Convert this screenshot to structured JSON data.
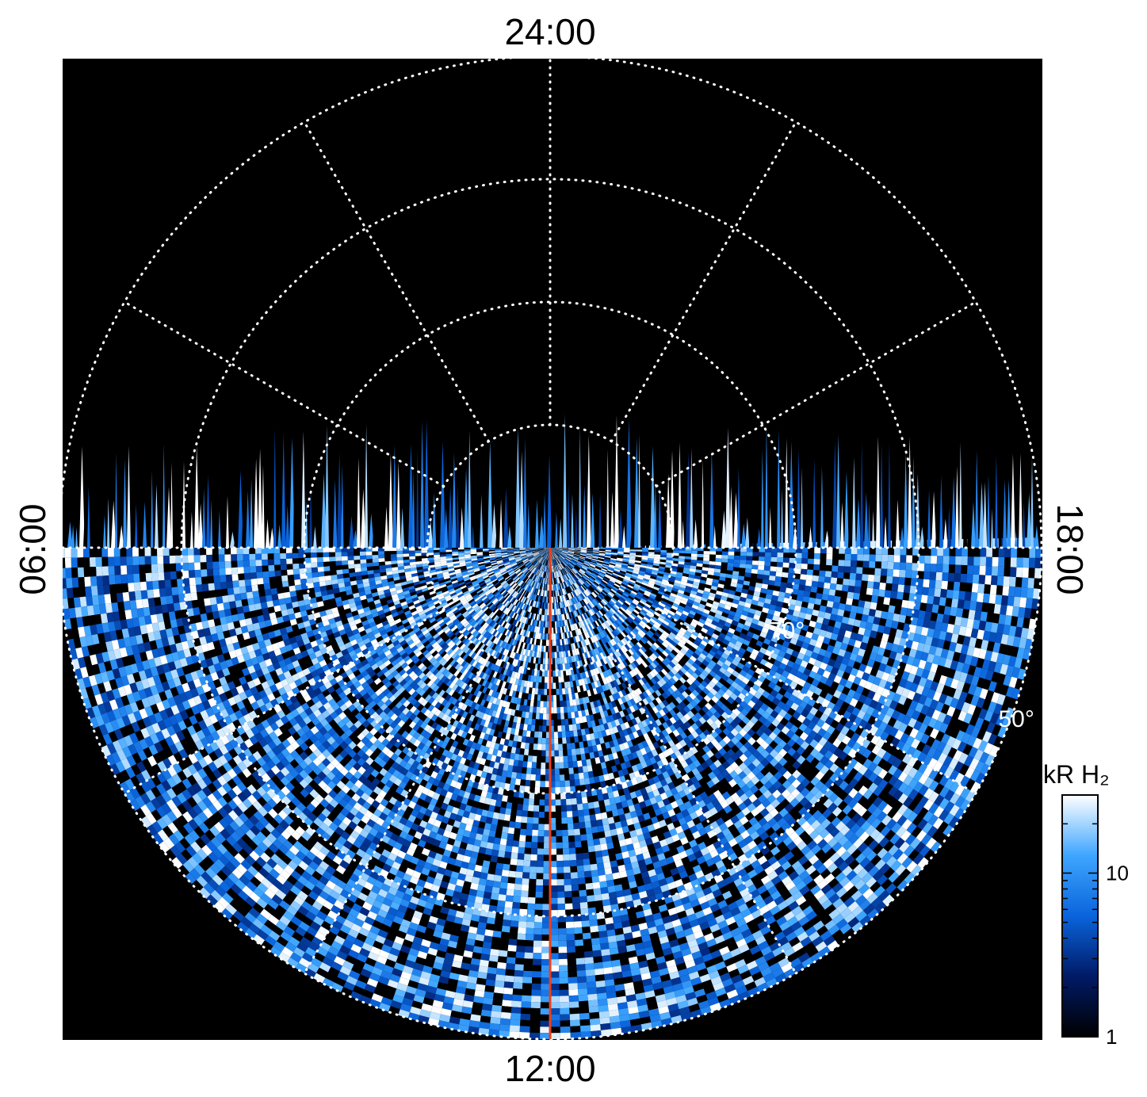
{
  "chart_data": {
    "type": "heatmap",
    "projection": "polar",
    "title": "",
    "local_time_labels": {
      "top": "24:00",
      "bottom": "12:00",
      "left": "06:00",
      "right": "18:00"
    },
    "latitude_circles_deg": [
      80,
      70,
      60,
      50
    ],
    "latitude_labels": [
      {
        "text": "70°",
        "lat": 70
      },
      {
        "text": "50°",
        "lat": 50
      }
    ],
    "meridian_spacing_hours": 2,
    "grid": "dotted white",
    "colorbar": {
      "title": "kR H₂",
      "scale": "log",
      "range": [
        1,
        30
      ],
      "tick_labels": [
        {
          "value": 1,
          "text": "1"
        },
        {
          "value": 10,
          "text": "10"
        }
      ],
      "colors": [
        "#000000",
        "#001a66",
        "#0a64dc",
        "#3ea6ff",
        "#ffffff"
      ]
    },
    "coverage": "dayside (06:00 – 12:00 – 18:00) observed; nightside empty",
    "reference_line": {
      "local_time": "12:00",
      "color": "#e8401c"
    },
    "background": "#000000"
  }
}
